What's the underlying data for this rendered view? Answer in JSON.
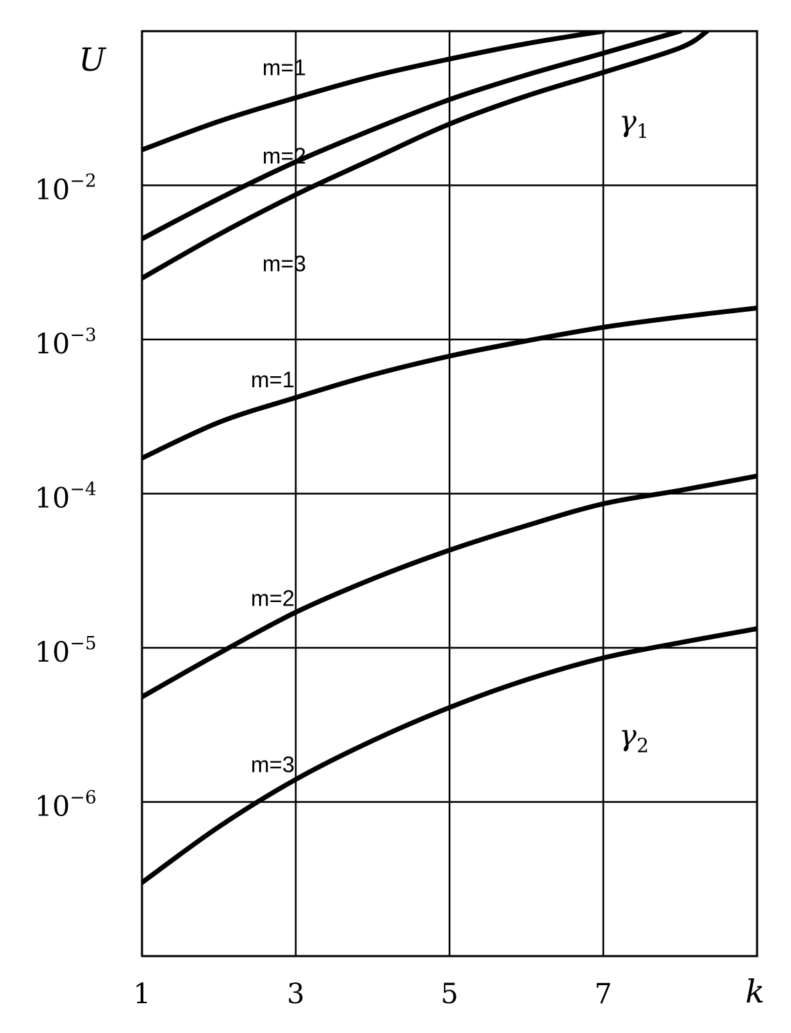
{
  "chart_data": {
    "type": "line",
    "title": "",
    "xlabel": "k",
    "ylabel": "U",
    "yscale": "log",
    "xlim": [
      1,
      9
    ],
    "ylim": [
      1e-07,
      0.1
    ],
    "grid": true,
    "x_ticks": [
      {
        "value": 1,
        "label": "1"
      },
      {
        "value": 3,
        "label": "3"
      },
      {
        "value": 5,
        "label": "5"
      },
      {
        "value": 7,
        "label": "7"
      }
    ],
    "y_ticks": [
      {
        "value": 0.01,
        "base": "10",
        "exp": "−2"
      },
      {
        "value": 0.001,
        "base": "10",
        "exp": "−3"
      },
      {
        "value": 0.0001,
        "base": "10",
        "exp": "−4"
      },
      {
        "value": 1e-05,
        "base": "10",
        "exp": "−5"
      },
      {
        "value": 1e-06,
        "base": "10",
        "exp": "−6"
      }
    ],
    "groups": [
      {
        "name": "γ",
        "subscript": "1",
        "series": [
          {
            "name": "m=1",
            "x": [
              1,
              2,
              3,
              4,
              5,
              6,
              7
            ],
            "y": [
              0.017,
              0.026,
              0.037,
              0.051,
              0.066,
              0.083,
              0.1
            ]
          },
          {
            "name": "m=2",
            "x": [
              1,
              2,
              3,
              4,
              5,
              6,
              7,
              8
            ],
            "y": [
              0.0045,
              0.0082,
              0.0142,
              0.023,
              0.036,
              0.052,
              0.072,
              0.1
            ]
          },
          {
            "name": "m=3",
            "x": [
              1,
              2,
              3,
              4,
              5,
              6,
              7,
              8,
              8.35
            ],
            "y": [
              0.0025,
              0.0048,
              0.0087,
              0.0148,
              0.025,
              0.038,
              0.054,
              0.078,
              0.1
            ]
          }
        ]
      },
      {
        "name": "γ",
        "subscript": "2",
        "series": [
          {
            "name": "m=1",
            "x": [
              1,
              2,
              3,
              4,
              5,
              6,
              7,
              8,
              9
            ],
            "y": [
              0.00017,
              0.00029,
              0.00042,
              0.00059,
              0.00078,
              0.00098,
              0.0012,
              0.0014,
              0.0016
            ]
          },
          {
            "name": "m=2",
            "x": [
              1,
              2,
              3,
              4,
              5,
              6,
              7,
              8,
              9
            ],
            "y": [
              4.8e-06,
              9.2e-06,
              1.7e-05,
              2.8e-05,
              4.3e-05,
              6.2e-05,
              8.6e-05,
              0.000105,
              0.00013
            ]
          },
          {
            "name": "m=3",
            "x": [
              1,
              2,
              3,
              4,
              5,
              6,
              7,
              8,
              9
            ],
            "y": [
              3e-07,
              6.9e-07,
              1.4e-06,
              2.5e-06,
              4.1e-06,
              6.2e-06,
              8.6e-06,
              1.08e-05,
              1.33e-05
            ]
          }
        ]
      }
    ],
    "annotations": [
      {
        "text": "m=1",
        "x": 2.85,
        "y": 0.058
      },
      {
        "text": "m=2",
        "x": 2.85,
        "y": 0.0155
      },
      {
        "text": "m=3",
        "x": 2.85,
        "y": 0.0031
      },
      {
        "text": "m=1",
        "x": 2.7,
        "y": 0.00055
      },
      {
        "text": "m=2",
        "x": 2.7,
        "y": 2.1e-05
      },
      {
        "text": "m=3",
        "x": 2.7,
        "y": 1.75e-06
      }
    ],
    "group_label_positions": [
      {
        "x": 7.4,
        "y": 0.026
      },
      {
        "x": 7.4,
        "y": 2.7e-06
      }
    ]
  }
}
